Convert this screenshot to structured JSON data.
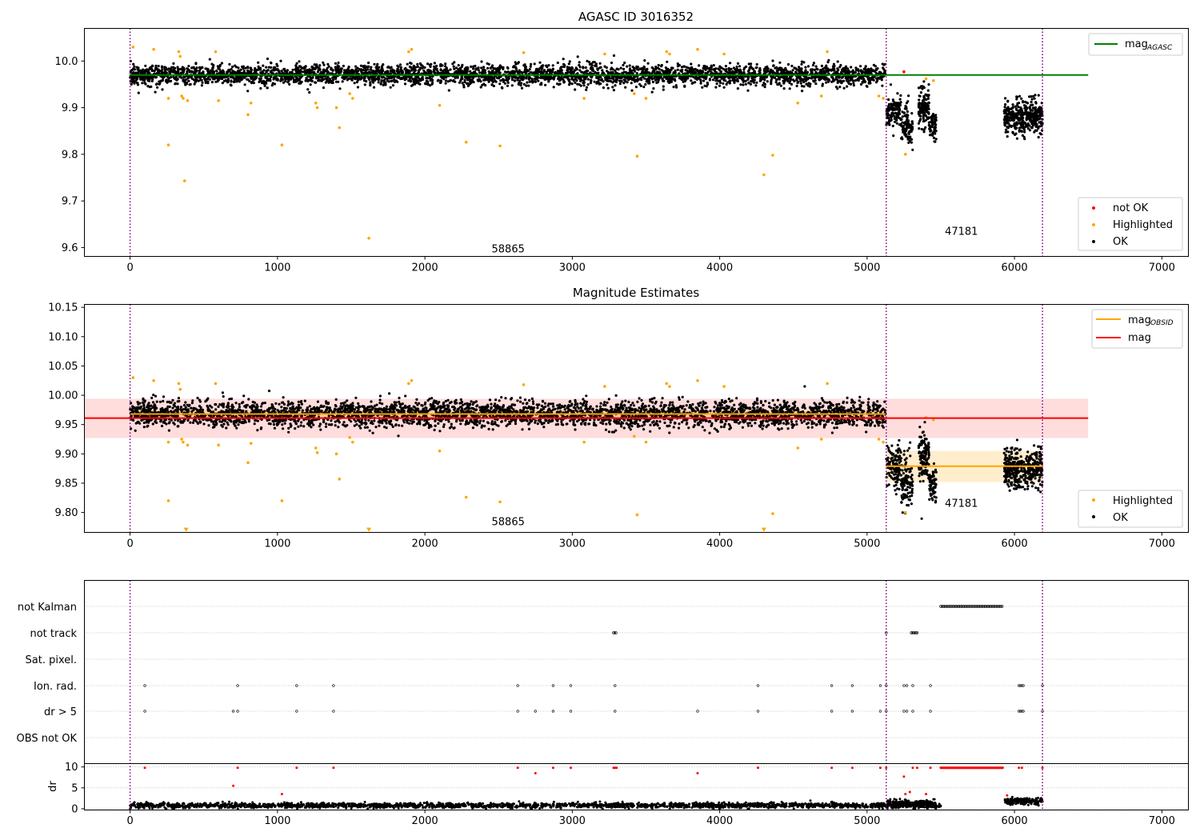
{
  "chart_data": [
    {
      "type": "scatter",
      "title": "AGASC ID 3016352",
      "xlim": [
        -310,
        7180
      ],
      "ylim": [
        9.581,
        10.07
      ],
      "xticks": [
        0,
        1000,
        2000,
        3000,
        4000,
        5000,
        6000,
        7000
      ],
      "yticks": [
        9.6,
        9.7,
        9.8,
        9.9,
        10.0
      ],
      "grid": false,
      "legend_upper": {
        "position": "upper-right",
        "entries": [
          {
            "label": "mag",
            "subscript": "AGASC",
            "color": "#008000",
            "style": "line"
          }
        ]
      },
      "legend_lower": {
        "position": "lower-right",
        "entries": [
          {
            "label": "not OK",
            "color": "#ff0000",
            "style": "dot"
          },
          {
            "label": "Highlighted",
            "color": "#ffa500",
            "style": "dot"
          },
          {
            "label": "OK",
            "color": "#000000",
            "style": "dot"
          }
        ]
      },
      "vlines": [
        0,
        5130,
        6190
      ],
      "hlines": [
        {
          "y": 9.97,
          "x0": 0,
          "x1": 6500,
          "color": "#008000"
        }
      ],
      "annotations": [
        {
          "text": "58865",
          "x": 2565,
          "y": 9.59
        },
        {
          "text": "47181",
          "x": 5640,
          "y": 9.627
        }
      ],
      "series": [
        {
          "name": "OK",
          "color": "#000000",
          "segments": [
            {
              "x0": 0,
              "x1": 5125,
              "n": 3800,
              "center": 9.97,
              "spread": 0.011
            },
            {
              "x0": 5130,
              "x1": 5230,
              "n": 120,
              "center": 9.89,
              "spread": 0.018
            },
            {
              "x0": 5230,
              "x1": 5310,
              "n": 110,
              "center": 9.86,
              "spread": 0.022
            },
            {
              "x0": 5350,
              "x1": 5420,
              "n": 120,
              "center": 9.9,
              "spread": 0.022
            },
            {
              "x0": 5420,
              "x1": 5470,
              "n": 60,
              "center": 9.86,
              "spread": 0.014
            },
            {
              "x0": 5930,
              "x1": 6190,
              "n": 380,
              "center": 9.88,
              "spread": 0.017
            }
          ]
        },
        {
          "name": "Highlighted",
          "color": "#ffa500",
          "points": [
            [
              20,
              10.03
            ],
            [
              160,
              10.025
            ],
            [
              330,
              10.02
            ],
            [
              340,
              10.01
            ],
            [
              580,
              10.02
            ],
            [
              1890,
              10.02
            ],
            [
              1910,
              10.025
            ],
            [
              2670,
              10.018
            ],
            [
              3220,
              10.015
            ],
            [
              3640,
              10.02
            ],
            [
              3660,
              10.015
            ],
            [
              3850,
              10.025
            ],
            [
              4030,
              10.015
            ],
            [
              4730,
              10.02
            ],
            [
              260,
              9.92
            ],
            [
              350,
              9.925
            ],
            [
              360,
              9.92
            ],
            [
              390,
              9.915
            ],
            [
              600,
              9.915
            ],
            [
              820,
              9.91
            ],
            [
              1260,
              9.91
            ],
            [
              1270,
              9.9
            ],
            [
              1400,
              9.9
            ],
            [
              1490,
              9.93
            ],
            [
              1510,
              9.92
            ],
            [
              2100,
              9.905
            ],
            [
              3080,
              9.92
            ],
            [
              3420,
              9.93
            ],
            [
              3500,
              9.92
            ],
            [
              4530,
              9.91
            ],
            [
              4690,
              9.925
            ],
            [
              5080,
              9.925
            ],
            [
              5110,
              9.92
            ],
            [
              260,
              9.82
            ],
            [
              800,
              9.885
            ],
            [
              1030,
              9.82
            ],
            [
              1420,
              9.857
            ],
            [
              2280,
              9.826
            ],
            [
              2510,
              9.818
            ],
            [
              3440,
              9.796
            ],
            [
              4360,
              9.798
            ],
            [
              370,
              9.743
            ],
            [
              4300,
              9.756
            ],
            [
              1620,
              9.62
            ],
            [
              5400,
              9.962
            ],
            [
              5450,
              9.958
            ],
            [
              5260,
              9.8
            ]
          ]
        },
        {
          "name": "not OK",
          "color": "#ff0000",
          "points": [
            [
              5250,
              9.977
            ]
          ]
        }
      ]
    },
    {
      "type": "scatter",
      "title": "Magnitude Estimates",
      "xlim": [
        -310,
        7180
      ],
      "ylim": [
        9.766,
        10.155
      ],
      "xticks": [
        0,
        1000,
        2000,
        3000,
        4000,
        5000,
        6000,
        7000
      ],
      "yticks": [
        9.8,
        9.85,
        9.9,
        9.95,
        10.0,
        10.05,
        10.1,
        10.15
      ],
      "ytick_labels": [
        "9.80",
        "9.85",
        "9.90",
        "9.95",
        "10.00",
        "10.05",
        "10.10",
        "10.15"
      ],
      "grid": false,
      "legend_upper": {
        "position": "upper-right",
        "entries": [
          {
            "label": "mag",
            "subscript": "OBSID",
            "color": "#ffa500",
            "style": "line"
          },
          {
            "label": "mag",
            "color": "#ff0000",
            "style": "line"
          }
        ]
      },
      "legend_lower": {
        "position": "lower-right",
        "entries": [
          {
            "label": "Highlighted",
            "color": "#ffa500",
            "style": "dot"
          },
          {
            "label": "OK",
            "color": "#000000",
            "style": "dot"
          }
        ]
      },
      "vlines": [
        0,
        5130,
        6190
      ],
      "bands": [
        {
          "x0": -310,
          "x1": 6500,
          "y0": 9.927,
          "y1": 9.994,
          "color": "#ff000022"
        },
        {
          "x0": 0,
          "x1": 5125,
          "y0": 9.96,
          "y1": 9.975,
          "color": "#ffa50033"
        },
        {
          "x0": 5130,
          "x1": 6190,
          "y0": 9.852,
          "y1": 9.905,
          "color": "#ffa50033"
        }
      ],
      "hlines": [
        {
          "y": 9.961,
          "x0": -310,
          "x1": 6500,
          "color": "#ff0000"
        },
        {
          "y": 9.968,
          "x0": 0,
          "x1": 5125,
          "color": "#ffa500"
        },
        {
          "y": 9.879,
          "x0": 5130,
          "x1": 6190,
          "color": "#ffa500"
        }
      ],
      "annotations": [
        {
          "text": "58865",
          "x": 2565,
          "y": 9.778
        },
        {
          "text": "47181",
          "x": 5640,
          "y": 9.81
        }
      ],
      "series": [
        {
          "name": "OK",
          "color": "#000000",
          "segments": [
            {
              "x0": 0,
              "x1": 5125,
              "n": 3800,
              "center": 9.968,
              "spread": 0.011
            },
            {
              "x0": 5130,
              "x1": 5230,
              "n": 120,
              "center": 9.88,
              "spread": 0.018
            },
            {
              "x0": 5230,
              "x1": 5310,
              "n": 110,
              "center": 9.855,
              "spread": 0.022
            },
            {
              "x0": 5350,
              "x1": 5420,
              "n": 120,
              "center": 9.895,
              "spread": 0.022
            },
            {
              "x0": 5420,
              "x1": 5470,
              "n": 60,
              "center": 9.85,
              "spread": 0.014
            },
            {
              "x0": 5930,
              "x1": 6190,
              "n": 380,
              "center": 9.875,
              "spread": 0.017
            }
          ]
        },
        {
          "name": "Highlighted",
          "color": "#ffa500",
          "points": [
            [
              20,
              10.03
            ],
            [
              160,
              10.025
            ],
            [
              330,
              10.02
            ],
            [
              340,
              10.01
            ],
            [
              580,
              10.02
            ],
            [
              1890,
              10.02
            ],
            [
              1910,
              10.025
            ],
            [
              2670,
              10.018
            ],
            [
              3220,
              10.015
            ],
            [
              3640,
              10.02
            ],
            [
              3660,
              10.015
            ],
            [
              3850,
              10.025
            ],
            [
              4030,
              10.015
            ],
            [
              4730,
              10.02
            ],
            [
              260,
              9.92
            ],
            [
              350,
              9.925
            ],
            [
              360,
              9.92
            ],
            [
              390,
              9.915
            ],
            [
              600,
              9.915
            ],
            [
              820,
              9.918
            ],
            [
              1260,
              9.91
            ],
            [
              1270,
              9.902
            ],
            [
              1400,
              9.9
            ],
            [
              1490,
              9.928
            ],
            [
              1510,
              9.92
            ],
            [
              2100,
              9.905
            ],
            [
              3080,
              9.92
            ],
            [
              3420,
              9.93
            ],
            [
              3500,
              9.92
            ],
            [
              4530,
              9.91
            ],
            [
              4690,
              9.925
            ],
            [
              5080,
              9.925
            ],
            [
              5110,
              9.92
            ],
            [
              260,
              9.82
            ],
            [
              800,
              9.885
            ],
            [
              1030,
              9.82
            ],
            [
              1420,
              9.857
            ],
            [
              2280,
              9.826
            ],
            [
              2510,
              9.818
            ],
            [
              3440,
              9.796
            ],
            [
              4360,
              9.798
            ],
            [
              5400,
              9.962
            ],
            [
              5450,
              9.958
            ],
            [
              5260,
              9.8
            ]
          ]
        },
        {
          "name": "Highlighted (off-scale)",
          "color": "#ffa500",
          "marker": "triangle-down",
          "points": [
            [
              380,
              9.77
            ],
            [
              1620,
              9.77
            ],
            [
              4300,
              9.77
            ]
          ]
        }
      ]
    },
    {
      "type": "scatter",
      "subtype": "flags",
      "xlim": [
        -310,
        7180
      ],
      "xticks": [
        0,
        1000,
        2000,
        3000,
        4000,
        5000,
        6000,
        7000
      ],
      "vlines": [
        0,
        5130,
        6190
      ],
      "flag_rows": [
        "not Kalman",
        "not track",
        "Sat. pixel.",
        "Ion. rad.",
        "dr > 5",
        "OBS not OK"
      ],
      "flags": {
        "not Kalman": [
          [
            5500,
            5920
          ]
        ],
        "not track": [
          [
            3280,
            3300
          ],
          [
            5130,
            5135
          ],
          [
            5300,
            5340
          ]
        ],
        "Sat. pixel.": [],
        "Ion. rad.": [
          100,
          730,
          1130,
          1380,
          2630,
          2870,
          2990,
          3290,
          4260,
          4760,
          4900,
          5090,
          5130,
          5250,
          5270,
          5310,
          5430,
          6030,
          6040,
          6050,
          6060,
          6190
        ],
        "dr > 5": [
          100,
          700,
          730,
          1130,
          1380,
          2630,
          2750,
          2870,
          2990,
          3290,
          3850,
          4260,
          4760,
          4900,
          5090,
          5130,
          5250,
          5270,
          5310,
          5430,
          6030,
          6040,
          6050,
          6060,
          6190
        ],
        "OBS not OK": []
      },
      "dr": {
        "ylabel": "dr",
        "ylim": [
          -0.3,
          10.8
        ],
        "yticks": [
          0,
          5,
          10
        ],
        "baseline": {
          "x0": 0,
          "x1": 5500,
          "center": 0.8,
          "spread": 0.5,
          "n": 2200
        },
        "late": [
          {
            "x0": 5130,
            "x1": 5470,
            "center": 1.2,
            "spread": 0.8,
            "n": 200
          },
          {
            "x0": 5930,
            "x1": 6190,
            "center": 1.8,
            "spread": 0.7,
            "n": 160
          }
        ],
        "red_points": [
          [
            100,
            9.8
          ],
          [
            700,
            5.5
          ],
          [
            730,
            9.8
          ],
          [
            1030,
            3.5
          ],
          [
            1130,
            9.8
          ],
          [
            1380,
            9.8
          ],
          [
            2630,
            9.8
          ],
          [
            2750,
            8.5
          ],
          [
            2870,
            9.8
          ],
          [
            2990,
            9.8
          ],
          [
            3280,
            9.8
          ],
          [
            3290,
            9.8
          ],
          [
            3300,
            9.8
          ],
          [
            3850,
            8.5
          ],
          [
            4260,
            9.8
          ],
          [
            4760,
            9.8
          ],
          [
            4900,
            9.8
          ],
          [
            5090,
            9.8
          ],
          [
            5130,
            9.8
          ],
          [
            5250,
            7.7
          ],
          [
            5260,
            3.5
          ],
          [
            5290,
            4
          ],
          [
            5310,
            9.8
          ],
          [
            5340,
            9.8
          ],
          [
            5400,
            3.5
          ],
          [
            5430,
            9.8
          ],
          [
            5950,
            3.2
          ],
          [
            6030,
            9.8
          ],
          [
            6050,
            9.8
          ],
          [
            6190,
            9.8
          ]
        ],
        "red_run": [
          5500,
          5920
        ]
      }
    }
  ]
}
